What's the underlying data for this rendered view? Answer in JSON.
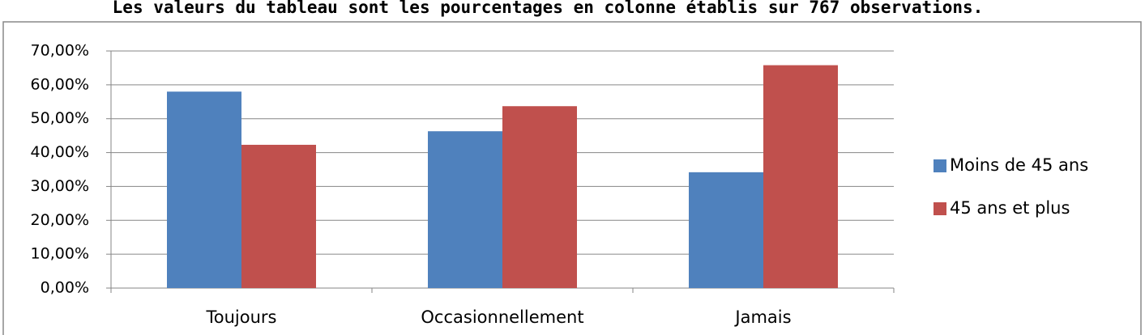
{
  "chart_data": {
    "type": "bar",
    "title": "Les valeurs du tableau sont les pourcentages en colonne établis sur 767 observations.",
    "categories": [
      "Toujours",
      "Occasionnellement",
      "Jamais"
    ],
    "series": [
      {
        "name": "Moins de 45 ans",
        "color": "#4f81bd",
        "values": [
          58.0,
          46.3,
          34.2
        ]
      },
      {
        "name": "45 ans et plus",
        "color": "#c0504d",
        "values": [
          42.3,
          53.7,
          65.8
        ]
      }
    ],
    "ylim": [
      0,
      70
    ],
    "yticks": [
      {
        "value": 0,
        "label": "0,00%"
      },
      {
        "value": 10,
        "label": "10,00%"
      },
      {
        "value": 20,
        "label": "20,00%"
      },
      {
        "value": 30,
        "label": "30,00%"
      },
      {
        "value": 40,
        "label": "40,00%"
      },
      {
        "value": 50,
        "label": "50,00%"
      },
      {
        "value": 60,
        "label": "60,00%"
      },
      {
        "value": 70,
        "label": "70,00%"
      }
    ],
    "grid": true,
    "legend": "right"
  }
}
